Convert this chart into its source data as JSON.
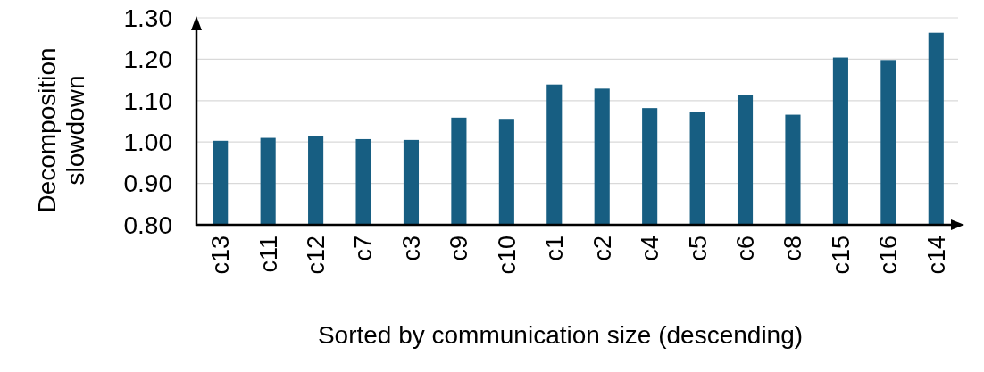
{
  "chart_data": {
    "type": "bar",
    "xlabel": "Sorted by communication size (descending)",
    "ylabel": "Decomposition slowdown",
    "categories": [
      "c13",
      "c11",
      "c12",
      "c7",
      "c3",
      "c9",
      "c10",
      "c1",
      "c2",
      "c4",
      "c5",
      "c6",
      "c8",
      "c15",
      "c16",
      "c14"
    ],
    "values": [
      1.003,
      1.01,
      1.014,
      1.007,
      1.005,
      1.059,
      1.056,
      1.139,
      1.129,
      1.082,
      1.072,
      1.113,
      1.066,
      1.204,
      1.198,
      1.264
    ],
    "color": "#175e82",
    "ylim": [
      0.8,
      1.3
    ],
    "yticks": [
      {
        "value": 0.8,
        "label": "0.80"
      },
      {
        "value": 0.9,
        "label": "0.90"
      },
      {
        "value": 1.0,
        "label": "1.00"
      },
      {
        "value": 1.1,
        "label": "1.10"
      },
      {
        "value": 1.2,
        "label": "1.20"
      },
      {
        "value": 1.3,
        "label": "1.30"
      }
    ],
    "grid": "y"
  }
}
